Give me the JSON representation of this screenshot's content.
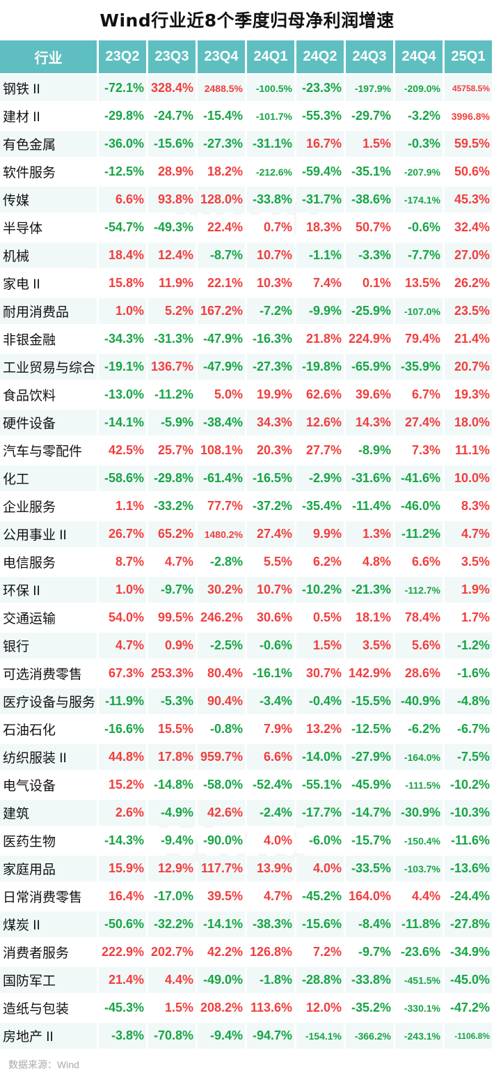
{
  "title": "Wind行业近8个季度归母净利润增速",
  "source": "数据来源：Wind",
  "watermark": "Wind",
  "colors": {
    "header_bg": "#5fbfc0",
    "positive": "#f23d3d",
    "negative": "#16a544",
    "row_alt": "#f1f8f8"
  },
  "chart_data": {
    "type": "table",
    "title": "Wind行业近8个季度归母净利润增速",
    "columns": [
      "行业",
      "23Q2",
      "23Q3",
      "23Q4",
      "24Q1",
      "24Q2",
      "24Q3",
      "24Q4",
      "25Q1"
    ],
    "rows": [
      [
        "钢铁 II",
        "-72.1%",
        "328.4%",
        "2488.5%",
        "-100.5%",
        "-23.3%",
        "-197.9%",
        "-209.0%",
        "45758.5%"
      ],
      [
        "建材 II",
        "-29.8%",
        "-24.7%",
        "-15.4%",
        "-101.7%",
        "-55.3%",
        "-29.7%",
        "-3.2%",
        "3996.8%"
      ],
      [
        "有色金属",
        "-36.0%",
        "-15.6%",
        "-27.3%",
        "-31.1%",
        "16.7%",
        "1.5%",
        "-0.3%",
        "59.5%"
      ],
      [
        "软件服务",
        "-12.5%",
        "28.9%",
        "18.2%",
        "-212.6%",
        "-59.4%",
        "-35.1%",
        "-207.9%",
        "50.6%"
      ],
      [
        "传媒",
        "6.6%",
        "93.8%",
        "128.0%",
        "-33.8%",
        "-31.7%",
        "-38.6%",
        "-174.1%",
        "45.3%"
      ],
      [
        "半导体",
        "-54.7%",
        "-49.3%",
        "22.4%",
        "0.7%",
        "18.3%",
        "50.7%",
        "-0.6%",
        "32.4%"
      ],
      [
        "机械",
        "18.4%",
        "12.4%",
        "-8.7%",
        "10.7%",
        "-1.1%",
        "-3.3%",
        "-7.7%",
        "27.0%"
      ],
      [
        "家电 II",
        "15.8%",
        "11.9%",
        "22.1%",
        "10.3%",
        "7.4%",
        "0.1%",
        "13.5%",
        "26.2%"
      ],
      [
        "耐用消费品",
        "1.0%",
        "5.2%",
        "167.2%",
        "-7.2%",
        "-9.9%",
        "-25.9%",
        "-107.0%",
        "23.5%"
      ],
      [
        "非银金融",
        "-34.3%",
        "-31.3%",
        "-47.9%",
        "-16.3%",
        "21.8%",
        "224.9%",
        "79.4%",
        "21.4%"
      ],
      [
        "工业贸易与综合",
        "-19.1%",
        "136.7%",
        "-47.9%",
        "-27.3%",
        "-19.8%",
        "-65.9%",
        "-35.9%",
        "20.7%"
      ],
      [
        "食品饮料",
        "-13.0%",
        "-11.2%",
        "5.0%",
        "19.9%",
        "62.6%",
        "39.6%",
        "6.7%",
        "19.3%"
      ],
      [
        "硬件设备",
        "-14.1%",
        "-5.9%",
        "-38.4%",
        "34.3%",
        "12.6%",
        "14.3%",
        "27.4%",
        "18.0%"
      ],
      [
        "汽车与零配件",
        "42.5%",
        "25.7%",
        "108.1%",
        "20.3%",
        "27.7%",
        "-8.9%",
        "7.3%",
        "11.1%"
      ],
      [
        "化工",
        "-58.6%",
        "-29.8%",
        "-61.4%",
        "-16.5%",
        "-2.9%",
        "-31.6%",
        "-41.6%",
        "10.0%"
      ],
      [
        "企业服务",
        "1.1%",
        "-33.2%",
        "77.7%",
        "-37.2%",
        "-35.4%",
        "-11.4%",
        "-46.0%",
        "8.3%"
      ],
      [
        "公用事业 II",
        "26.7%",
        "65.2%",
        "1480.2%",
        "27.4%",
        "9.9%",
        "1.3%",
        "-11.2%",
        "4.7%"
      ],
      [
        "电信服务",
        "8.7%",
        "4.7%",
        "-2.8%",
        "5.5%",
        "6.2%",
        "4.8%",
        "6.6%",
        "3.5%"
      ],
      [
        "环保 II",
        "1.0%",
        "-9.7%",
        "30.2%",
        "10.7%",
        "-10.2%",
        "-21.3%",
        "-112.7%",
        "1.9%"
      ],
      [
        "交通运输",
        "54.0%",
        "99.5%",
        "246.2%",
        "30.6%",
        "0.5%",
        "18.1%",
        "78.4%",
        "1.7%"
      ],
      [
        "银行",
        "4.7%",
        "0.9%",
        "-2.5%",
        "-0.6%",
        "1.5%",
        "3.5%",
        "5.6%",
        "-1.2%"
      ],
      [
        "可选消费零售",
        "67.3%",
        "253.3%",
        "80.4%",
        "-16.1%",
        "30.7%",
        "142.9%",
        "28.6%",
        "-1.6%"
      ],
      [
        "医疗设备与服务",
        "-11.9%",
        "-5.3%",
        "90.4%",
        "-3.4%",
        "-0.4%",
        "-15.5%",
        "-40.9%",
        "-4.8%"
      ],
      [
        "石油石化",
        "-16.6%",
        "15.5%",
        "-0.8%",
        "7.9%",
        "13.2%",
        "-12.5%",
        "-6.2%",
        "-6.7%"
      ],
      [
        "纺织服装 II",
        "44.8%",
        "17.8%",
        "959.7%",
        "6.6%",
        "-14.0%",
        "-27.9%",
        "-164.0%",
        "-7.5%"
      ],
      [
        "电气设备",
        "15.2%",
        "-14.8%",
        "-58.0%",
        "-52.4%",
        "-55.1%",
        "-45.9%",
        "-111.5%",
        "-10.2%"
      ],
      [
        "建筑",
        "2.6%",
        "-4.9%",
        "42.6%",
        "-2.4%",
        "-17.7%",
        "-14.7%",
        "-30.9%",
        "-10.3%"
      ],
      [
        "医药生物",
        "-14.3%",
        "-9.4%",
        "-90.0%",
        "4.0%",
        "-6.0%",
        "-15.7%",
        "-150.4%",
        "-11.6%"
      ],
      [
        "家庭用品",
        "15.9%",
        "12.9%",
        "117.7%",
        "13.9%",
        "4.0%",
        "-33.5%",
        "-103.7%",
        "-13.6%"
      ],
      [
        "日常消费零售",
        "16.4%",
        "-17.0%",
        "39.5%",
        "4.7%",
        "-45.2%",
        "164.0%",
        "4.4%",
        "-24.4%"
      ],
      [
        "煤炭 II",
        "-50.6%",
        "-32.2%",
        "-14.1%",
        "-38.3%",
        "-15.6%",
        "-8.4%",
        "-11.8%",
        "-27.8%"
      ],
      [
        "消费者服务",
        "222.9%",
        "202.7%",
        "42.2%",
        "126.8%",
        "7.2%",
        "-9.7%",
        "-23.6%",
        "-34.9%"
      ],
      [
        "国防军工",
        "21.4%",
        "4.4%",
        "-49.0%",
        "-1.8%",
        "-28.8%",
        "-33.8%",
        "-451.5%",
        "-45.0%"
      ],
      [
        "造纸与包装",
        "-45.3%",
        "1.5%",
        "208.2%",
        "113.6%",
        "12.0%",
        "-35.2%",
        "-330.1%",
        "-47.2%"
      ],
      [
        "房地产 II",
        "-3.8%",
        "-70.8%",
        "-9.4%",
        "-94.7%",
        "-154.1%",
        "-366.2%",
        "-243.1%",
        "-1106.8%"
      ]
    ]
  }
}
